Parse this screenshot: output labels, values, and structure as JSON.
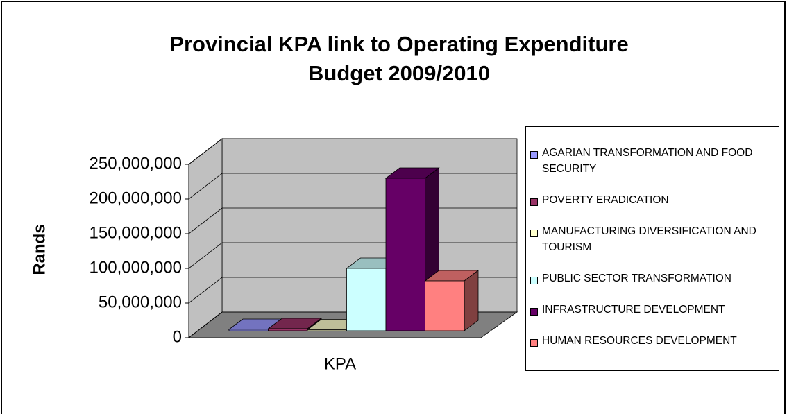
{
  "chart_data": {
    "type": "bar3d",
    "title": "Provincial KPA link to Operating Expenditure",
    "subtitle": "Budget 2009/2010",
    "y_label": "Rands",
    "categories": [
      "KPA"
    ],
    "series": [
      {
        "name": "AGARIAN TRANSFORMATION AND FOOD SECURITY",
        "color": "#9999ff",
        "values": [
          2000000
        ]
      },
      {
        "name": "POVERTY ERADICATION",
        "color": "#993366",
        "values": [
          3000000
        ]
      },
      {
        "name": "MANUFACTURING DIVERSIFICATION AND TOURISM",
        "color": "#ffffcc",
        "values": [
          1500000
        ]
      },
      {
        "name": "PUBLIC SECTOR TRANSFORMATION",
        "color": "#ccffff",
        "values": [
          90000000
        ]
      },
      {
        "name": "INFRASTRUCTURE DEVELOPMENT",
        "color": "#660066",
        "values": [
          220000000
        ]
      },
      {
        "name": "HUMAN RESOURCES DEVELOPMENT",
        "color": "#ff8080",
        "values": [
          72000000
        ]
      }
    ],
    "ylim": [
      0,
      250000000
    ],
    "yticks": [
      0,
      {
        "value": 50000000,
        "label": "50,000,000"
      },
      {
        "value": 100000000,
        "label": "100,000,000"
      },
      {
        "value": 150000000,
        "label": "150,000,000"
      },
      {
        "value": 200000000,
        "label": "200,000,000"
      },
      {
        "value": 250000000,
        "label": "250,000,000"
      }
    ],
    "grid": true,
    "legend": "right"
  }
}
